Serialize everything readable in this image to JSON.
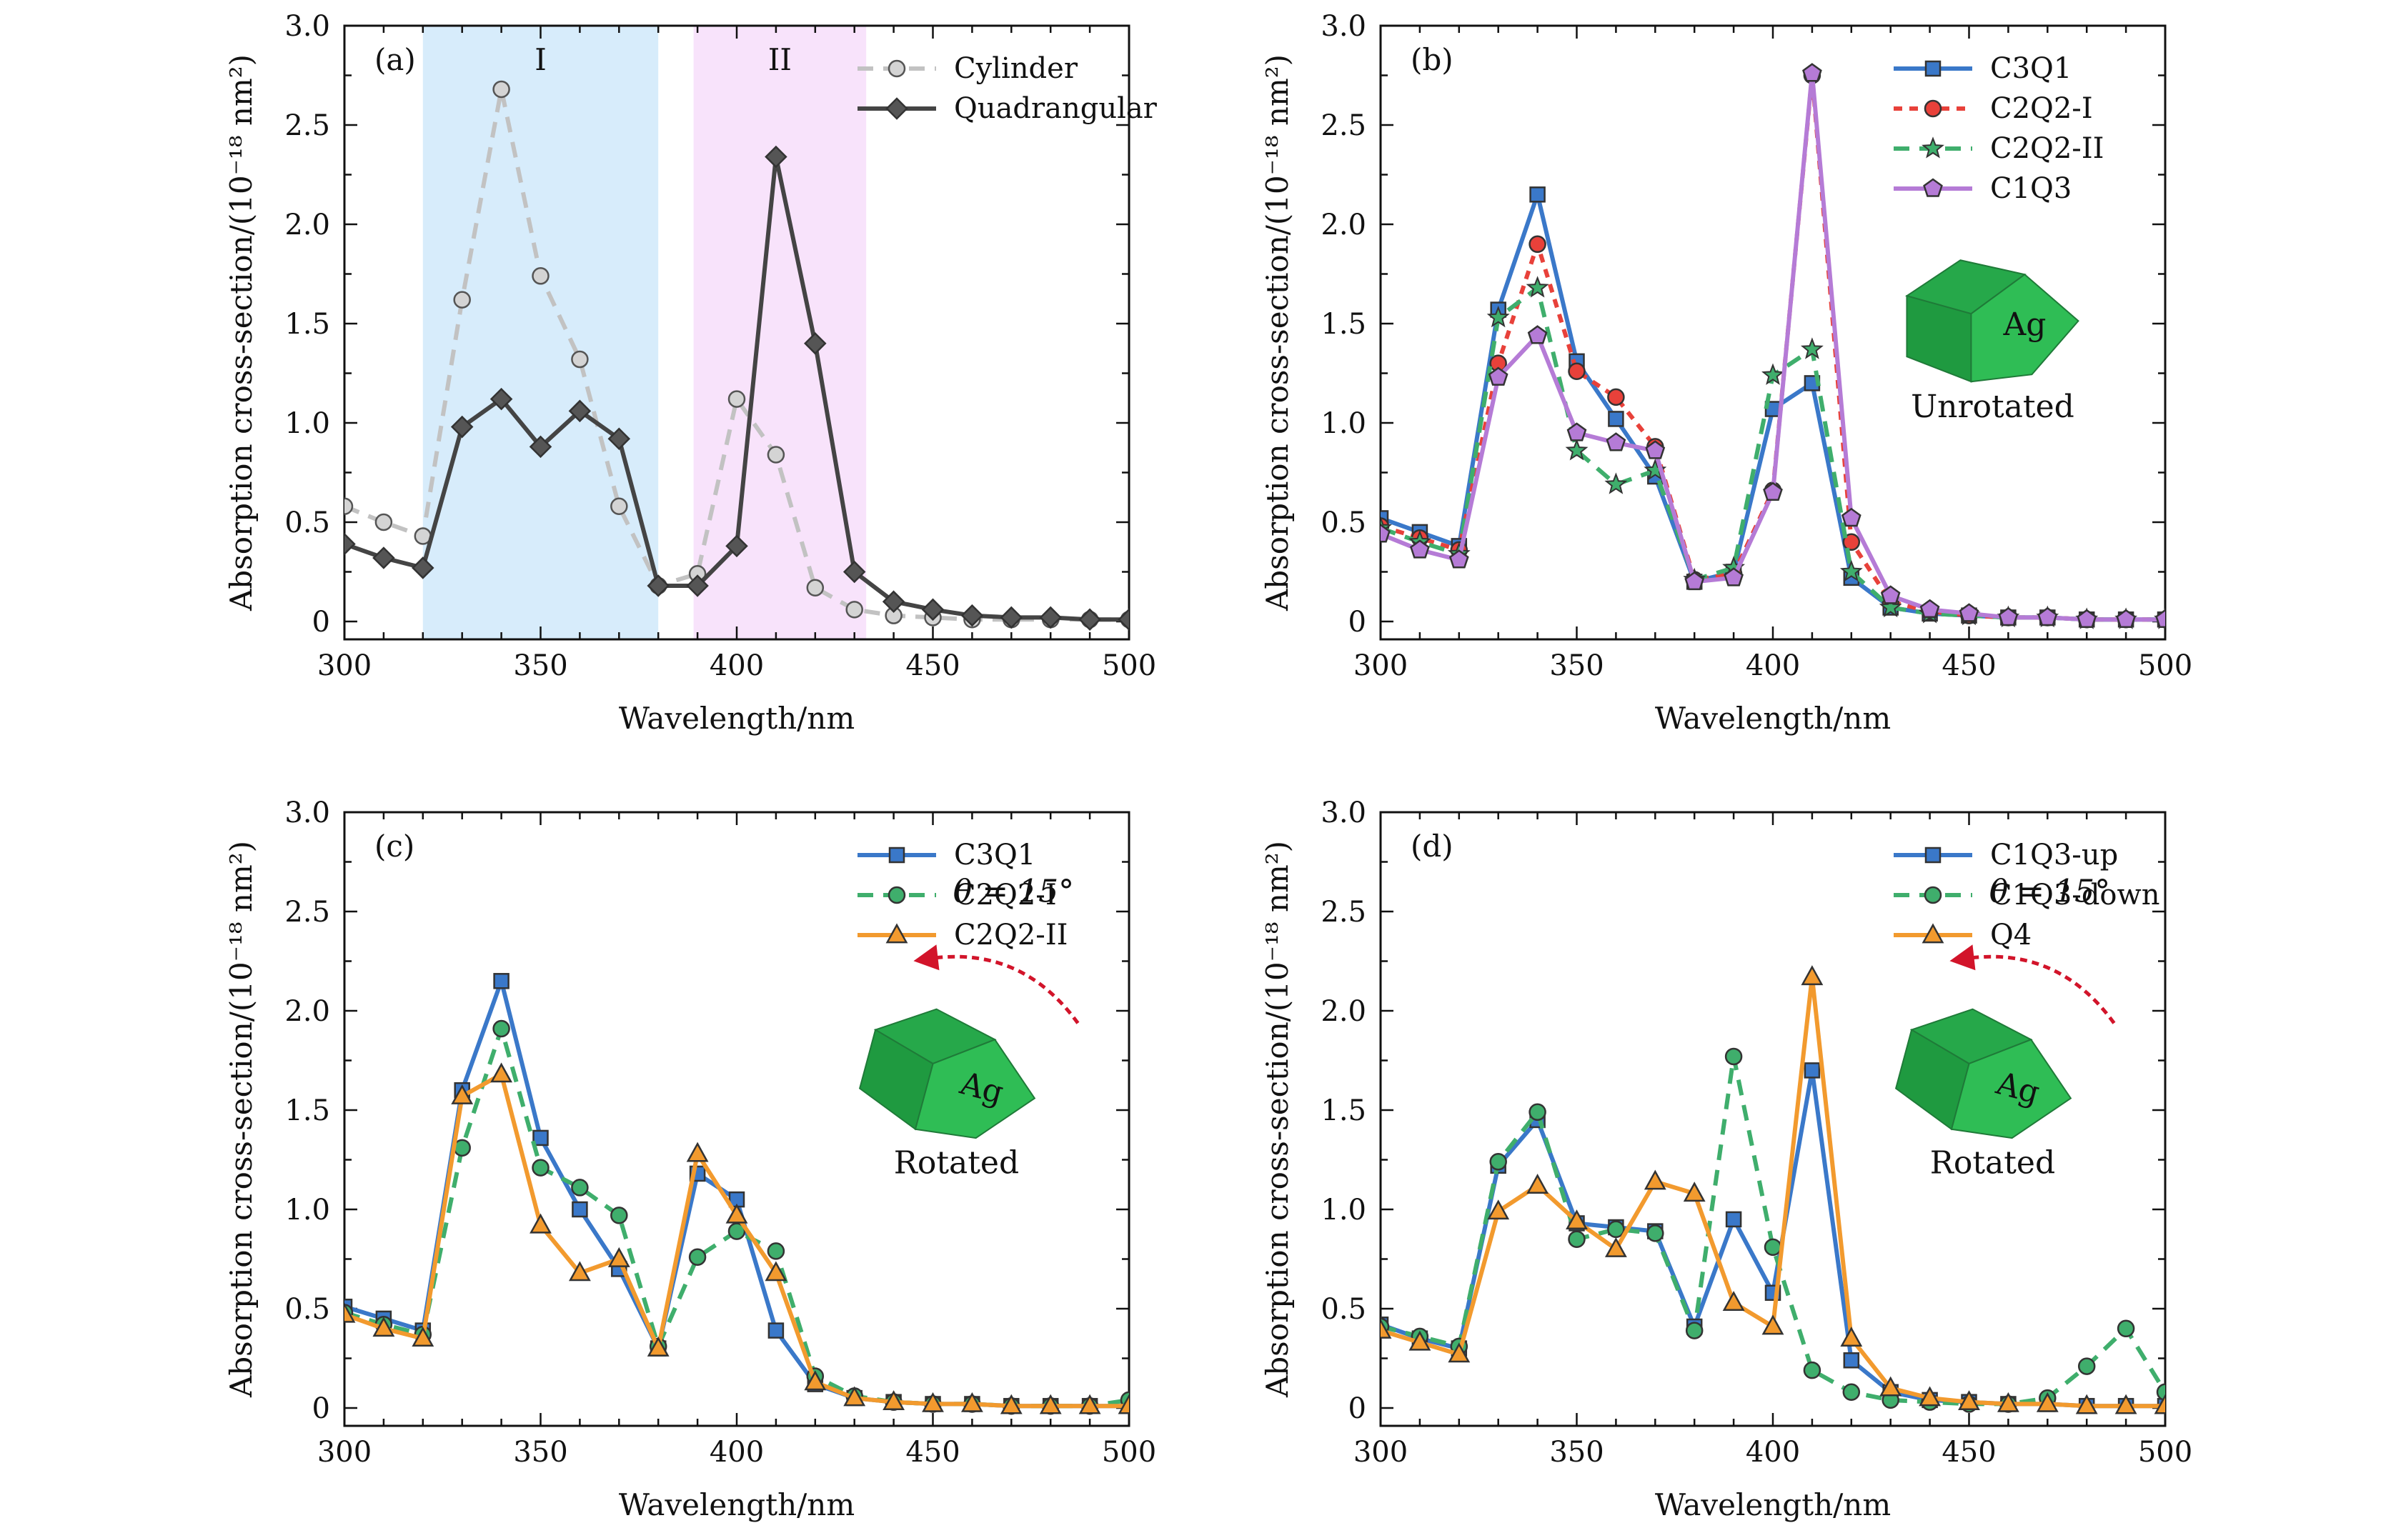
{
  "colors": {
    "cylinder": "#c2c2c2",
    "quadrangular": "#444444",
    "blue": "#3a78c9",
    "red": "#e8413a",
    "green": "#3fae6c",
    "purple": "#b57bd6",
    "orange": "#f29a2e",
    "regionI": "#d7ecfb",
    "regionII": "#f8e3fb",
    "agGreen": "#2fbd55",
    "arrowRed": "#d2142a"
  },
  "chart_data": [
    {
      "type": "line",
      "panel_label": "(a)",
      "xlabel": "Wavelength/nm",
      "ylabel": "Absorption cross-section/(10⁻¹⁸ nm²)",
      "xlim": [
        300,
        500
      ],
      "ylim": [
        0,
        3.0
      ],
      "xticks": [
        "300",
        "350",
        "400",
        "450",
        "500"
      ],
      "yticks": [
        "0",
        "0.5",
        "1.0",
        "1.5",
        "2.0",
        "2.5",
        "3.0"
      ],
      "legend_position": "top-right",
      "regions": [
        {
          "label": "I",
          "x_start": 320,
          "x_end": 380,
          "color": "#d7ecfb"
        },
        {
          "label": "II",
          "x_start": 389,
          "x_end": 433,
          "color": "#f8e3fb"
        }
      ],
      "x": [
        300,
        310,
        320,
        330,
        340,
        350,
        360,
        370,
        380,
        390,
        400,
        410,
        420,
        430,
        440,
        450,
        460,
        470,
        480,
        490,
        500
      ],
      "series": [
        {
          "name": "Cylinder",
          "color": "#c2c2c2",
          "dash": "dashed",
          "marker": "circle",
          "marker_fill": "#d4d4d4",
          "values": [
            0.58,
            0.5,
            0.43,
            1.62,
            2.68,
            1.74,
            1.32,
            0.58,
            0.18,
            0.24,
            1.12,
            0.84,
            0.17,
            0.06,
            0.03,
            0.02,
            0.01,
            0.01,
            0.01,
            0.01,
            0.01
          ]
        },
        {
          "name": "Quadrangular",
          "color": "#444444",
          "dash": "solid",
          "marker": "diamond",
          "marker_fill": "#555555",
          "values": [
            0.39,
            0.32,
            0.27,
            0.98,
            1.12,
            0.88,
            1.06,
            0.92,
            0.18,
            0.18,
            0.38,
            2.34,
            1.4,
            0.25,
            0.1,
            0.06,
            0.03,
            0.02,
            0.02,
            0.01,
            0.01
          ]
        }
      ]
    },
    {
      "type": "line",
      "panel_label": "(b)",
      "xlabel": "Wavelength/nm",
      "ylabel": "Absorption cross-section/(10⁻¹⁸ nm²)",
      "xlim": [
        300,
        500
      ],
      "ylim": [
        0,
        3.0
      ],
      "xticks": [
        "300",
        "350",
        "400",
        "450",
        "500"
      ],
      "yticks": [
        "0",
        "0.5",
        "1.0",
        "1.5",
        "2.0",
        "2.5",
        "3.0"
      ],
      "legend_position": "top-right",
      "inset": {
        "shape": "Ag cube",
        "label": "Unrotated",
        "rotated": false
      },
      "x": [
        300,
        310,
        320,
        330,
        340,
        350,
        360,
        370,
        380,
        390,
        400,
        410,
        420,
        430,
        440,
        450,
        460,
        470,
        480,
        490,
        500
      ],
      "series": [
        {
          "name": "C3Q1",
          "color": "#3a78c9",
          "dash": "solid",
          "marker": "square",
          "marker_fill": "#3a78c9",
          "values": [
            0.52,
            0.45,
            0.38,
            1.57,
            2.15,
            1.31,
            1.02,
            0.73,
            0.2,
            0.25,
            1.07,
            1.2,
            0.22,
            0.07,
            0.04,
            0.03,
            0.02,
            0.02,
            0.01,
            0.01,
            0.01
          ]
        },
        {
          "name": "C2Q2-I",
          "color": "#e8413a",
          "dash": "dotted",
          "marker": "circle",
          "marker_fill": "#e8413a",
          "values": [
            0.48,
            0.42,
            0.36,
            1.3,
            1.9,
            1.26,
            1.13,
            0.88,
            0.21,
            0.24,
            0.66,
            2.75,
            0.4,
            0.1,
            0.05,
            0.03,
            0.02,
            0.02,
            0.01,
            0.01,
            0.01
          ]
        },
        {
          "name": "C2Q2-II",
          "color": "#3fae6c",
          "dash": "dashed",
          "marker": "star",
          "marker_fill": "#3fae6c",
          "values": [
            0.47,
            0.4,
            0.34,
            1.53,
            1.68,
            0.86,
            0.69,
            0.76,
            0.21,
            0.27,
            1.24,
            1.37,
            0.25,
            0.07,
            0.04,
            0.03,
            0.02,
            0.02,
            0.01,
            0.01,
            0.01
          ]
        },
        {
          "name": "C1Q3",
          "color": "#b57bd6",
          "dash": "solid",
          "marker": "pentagon",
          "marker_fill": "#b57bd6",
          "values": [
            0.44,
            0.36,
            0.31,
            1.23,
            1.44,
            0.95,
            0.9,
            0.86,
            0.2,
            0.22,
            0.65,
            2.76,
            0.52,
            0.13,
            0.06,
            0.04,
            0.02,
            0.02,
            0.01,
            0.01,
            0.01
          ]
        }
      ]
    },
    {
      "type": "line",
      "panel_label": "(c)",
      "xlabel": "Wavelength/nm",
      "ylabel": "Absorption cross-section/(10⁻¹⁸ nm²)",
      "xlim": [
        300,
        500
      ],
      "ylim": [
        0,
        3.0
      ],
      "xticks": [
        "300",
        "350",
        "400",
        "450",
        "500"
      ],
      "yticks": [
        "0",
        "0.5",
        "1.0",
        "1.5",
        "2.0",
        "2.5",
        "3.0"
      ],
      "legend_position": "top-right",
      "inset": {
        "shape": "Ag cube",
        "label": "Rotated",
        "rotated": true,
        "angle_label": "θ = 15°"
      },
      "x": [
        300,
        310,
        320,
        330,
        340,
        350,
        360,
        370,
        380,
        390,
        400,
        410,
        420,
        430,
        440,
        450,
        460,
        470,
        480,
        490,
        500
      ],
      "series": [
        {
          "name": "C3Q1",
          "color": "#3a78c9",
          "dash": "solid",
          "marker": "square",
          "marker_fill": "#3a78c9",
          "values": [
            0.51,
            0.45,
            0.39,
            1.6,
            2.15,
            1.36,
            1.0,
            0.7,
            0.3,
            1.18,
            1.05,
            0.39,
            0.12,
            0.05,
            0.03,
            0.02,
            0.02,
            0.01,
            0.01,
            0.01,
            0.01
          ]
        },
        {
          "name": "C2Q2-I",
          "color": "#3fae6c",
          "dash": "dashed",
          "marker": "circle",
          "marker_fill": "#3fae6c",
          "values": [
            0.48,
            0.42,
            0.37,
            1.31,
            1.91,
            1.21,
            1.11,
            0.97,
            0.31,
            0.76,
            0.89,
            0.79,
            0.16,
            0.06,
            0.03,
            0.02,
            0.02,
            0.01,
            0.01,
            0.01,
            0.04
          ]
        },
        {
          "name": "C2Q2-II",
          "color": "#f29a2e",
          "dash": "solid",
          "marker": "triangle",
          "marker_fill": "#f29a2e",
          "values": [
            0.47,
            0.4,
            0.35,
            1.57,
            1.68,
            0.92,
            0.68,
            0.75,
            0.3,
            1.28,
            0.97,
            0.68,
            0.13,
            0.05,
            0.03,
            0.02,
            0.02,
            0.01,
            0.01,
            0.01,
            0.01
          ]
        }
      ]
    },
    {
      "type": "line",
      "panel_label": "(d)",
      "xlabel": "Wavelength/nm",
      "ylabel": "Absorption cross-section/(10⁻¹⁸ nm²)",
      "xlim": [
        300,
        500
      ],
      "ylim": [
        0,
        3.0
      ],
      "xticks": [
        "300",
        "350",
        "400",
        "450",
        "500"
      ],
      "yticks": [
        "0",
        "0.5",
        "1.0",
        "1.5",
        "2.0",
        "2.5",
        "3.0"
      ],
      "legend_position": "top-right",
      "inset": {
        "shape": "Ag cube",
        "label": "Rotated",
        "rotated": true,
        "angle_label": "θ = 15°"
      },
      "x": [
        300,
        310,
        320,
        330,
        340,
        350,
        360,
        370,
        380,
        390,
        400,
        410,
        420,
        430,
        440,
        450,
        460,
        470,
        480,
        490,
        500
      ],
      "series": [
        {
          "name": "C1Q3-up",
          "color": "#3a78c9",
          "dash": "solid",
          "marker": "square",
          "marker_fill": "#3a78c9",
          "values": [
            0.42,
            0.35,
            0.3,
            1.22,
            1.45,
            0.93,
            0.91,
            0.89,
            0.41,
            0.95,
            0.58,
            1.7,
            0.24,
            0.08,
            0.04,
            0.03,
            0.02,
            0.02,
            0.01,
            0.01,
            0.01
          ]
        },
        {
          "name": "C1Q3-down",
          "color": "#3fae6c",
          "dash": "dashed",
          "marker": "circle",
          "marker_fill": "#3fae6c",
          "values": [
            0.41,
            0.36,
            0.31,
            1.24,
            1.49,
            0.85,
            0.9,
            0.88,
            0.39,
            1.77,
            0.81,
            0.19,
            0.08,
            0.04,
            0.03,
            0.02,
            0.02,
            0.05,
            0.21,
            0.4,
            0.08
          ]
        },
        {
          "name": "Q4",
          "color": "#f29a2e",
          "dash": "solid",
          "marker": "triangle",
          "marker_fill": "#f29a2e",
          "values": [
            0.39,
            0.33,
            0.27,
            0.99,
            1.12,
            0.94,
            0.8,
            1.14,
            1.08,
            0.53,
            0.41,
            2.17,
            0.35,
            0.1,
            0.05,
            0.03,
            0.02,
            0.02,
            0.01,
            0.01,
            0.01
          ]
        }
      ]
    }
  ]
}
